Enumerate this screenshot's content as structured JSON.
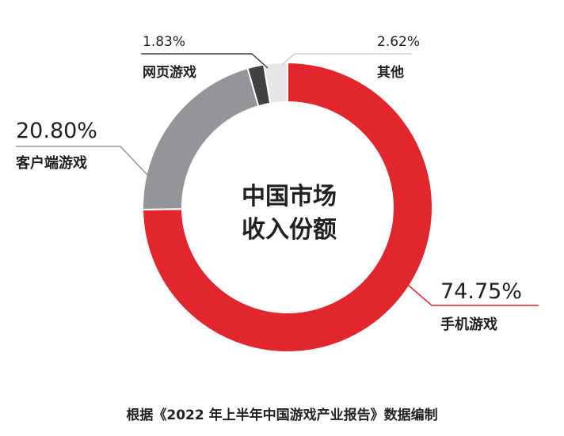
{
  "chart_data": {
    "type": "pie",
    "style": "donut",
    "center_title": [
      "中国市场",
      "收入份额"
    ],
    "slices": [
      {
        "label": "手机游戏",
        "value": 74.75,
        "value_text": "74.75%",
        "color": "#e1262d"
      },
      {
        "label": "客户端游戏",
        "value": 20.8,
        "value_text": "20.80%",
        "color": "#939598"
      },
      {
        "label": "网页游戏",
        "value": 1.83,
        "value_text": "1.83%",
        "color": "#414042"
      },
      {
        "label": "其他",
        "value": 2.62,
        "value_text": "2.62%",
        "color": "#e6e7e8"
      }
    ]
  },
  "source_note": "根据《2022 年上半年中国游戏产业报告》数据编制"
}
